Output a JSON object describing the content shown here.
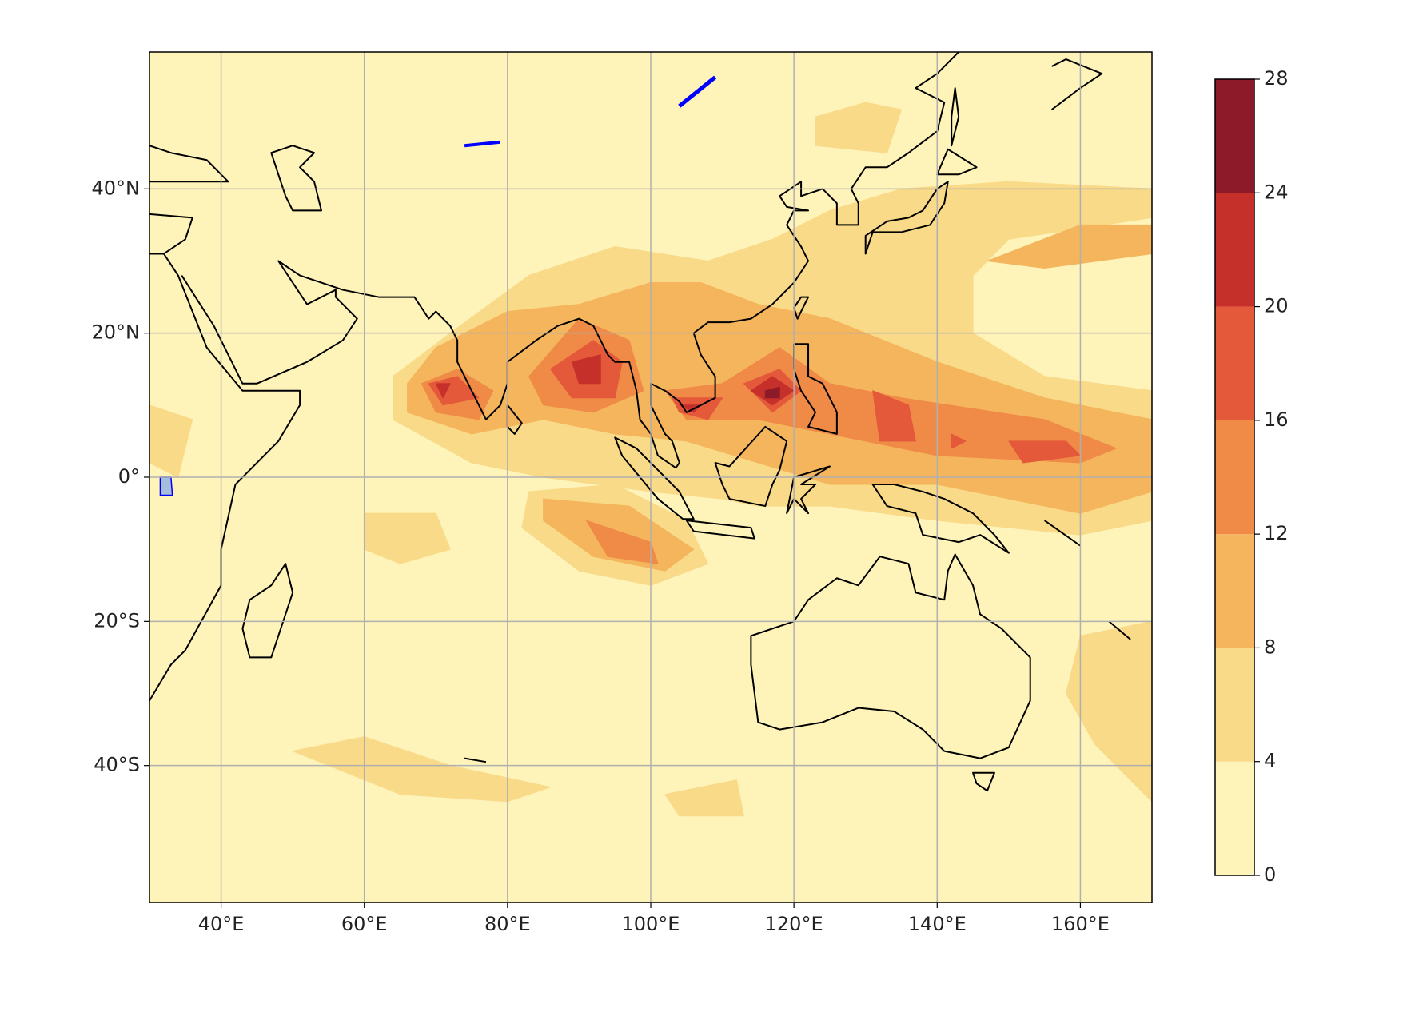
{
  "chart_data": {
    "type": "contourf",
    "xlim": [
      30,
      170
    ],
    "ylim": [
      -59,
      59
    ],
    "xticks": [
      {
        "value": 40,
        "label": "40°E"
      },
      {
        "value": 60,
        "label": "60°E"
      },
      {
        "value": 80,
        "label": "80°E"
      },
      {
        "value": 100,
        "label": "100°E"
      },
      {
        "value": 120,
        "label": "120°E"
      },
      {
        "value": 140,
        "label": "140°E"
      },
      {
        "value": 160,
        "label": "160°E"
      }
    ],
    "yticks": [
      {
        "value": 40,
        "label": "40°N"
      },
      {
        "value": 20,
        "label": "20°N"
      },
      {
        "value": 0,
        "label": "0°"
      },
      {
        "value": -20,
        "label": "20°S"
      },
      {
        "value": -40,
        "label": "40°S"
      }
    ],
    "grid": true,
    "levels": [
      0,
      4,
      8,
      12,
      16,
      20,
      24,
      28
    ],
    "colors": [
      "#fef3b9",
      "#f9da88",
      "#f4b55c",
      "#ef8b47",
      "#e4593a",
      "#c6302a",
      "#8c1a28"
    ],
    "contours": [
      {
        "level": 4,
        "lon": [
          64,
          72,
          83,
          95,
          108,
          117,
          125,
          135,
          150,
          170,
          170,
          150,
          145,
          145,
          155,
          170,
          170,
          160,
          140,
          125,
          115,
          110,
          100,
          85,
          75,
          64
        ],
        "lat": [
          14,
          20,
          28,
          32,
          30,
          33,
          37,
          40,
          41,
          40,
          36,
          33,
          28,
          20,
          14,
          12,
          -6,
          -8,
          -6,
          -4,
          -4,
          -3,
          -2,
          0,
          2,
          8
        ]
      },
      {
        "level": 4,
        "lon": [
          83,
          95,
          105,
          108,
          100,
          90,
          82
        ],
        "lat": [
          -2,
          -1,
          -6,
          -12,
          -15,
          -13,
          -7
        ]
      },
      {
        "level": 4,
        "lon": [
          60,
          70,
          72,
          65,
          60
        ],
        "lat": [
          -5,
          -5,
          -10,
          -12,
          -10
        ]
      },
      {
        "level": 4,
        "lon": [
          50,
          60,
          72,
          86,
          80,
          65
        ],
        "lat": [
          -38,
          -36,
          -40,
          -43,
          -45,
          -44
        ]
      },
      {
        "level": 4,
        "lon": [
          102,
          112,
          113,
          104
        ],
        "lat": [
          -44,
          -42,
          -47,
          -47
        ]
      },
      {
        "level": 4,
        "lon": [
          160,
          170,
          170,
          162,
          158
        ],
        "lat": [
          -22,
          -20,
          -45,
          -37,
          -30
        ]
      },
      {
        "level": 4,
        "lon": [
          123,
          130,
          135,
          133,
          123
        ],
        "lat": [
          50,
          52,
          51,
          45,
          46
        ]
      },
      {
        "level": 4,
        "lon": [
          30,
          36,
          34,
          30
        ],
        "lat": [
          10,
          8,
          0,
          2
        ]
      },
      {
        "level": 8,
        "lon": [
          147,
          160,
          170,
          170,
          155
        ],
        "lat": [
          30,
          35,
          35,
          31,
          29
        ]
      },
      {
        "level": 8,
        "lon": [
          66,
          70,
          80,
          90,
          100,
          107,
          115,
          125,
          140,
          155,
          170,
          170,
          160,
          140,
          125,
          115,
          105,
          95,
          85,
          75,
          66
        ],
        "lat": [
          13,
          18,
          23,
          24,
          27,
          27,
          24,
          22,
          16,
          11,
          8,
          -2,
          -5,
          -1,
          -1,
          2,
          5,
          6,
          8,
          6,
          9
        ]
      },
      {
        "level": 8,
        "lon": [
          85,
          97,
          106,
          102,
          92,
          85
        ],
        "lat": [
          -3,
          -4,
          -10,
          -13,
          -11,
          -6
        ]
      },
      {
        "level": 12,
        "lon": [
          68,
          73,
          78,
          76,
          70
        ],
        "lat": [
          13,
          15,
          12,
          8,
          9
        ]
      },
      {
        "level": 12,
        "lon": [
          83,
          90,
          97,
          99,
          92,
          85
        ],
        "lat": [
          14,
          22,
          19,
          12,
          9,
          10
        ]
      },
      {
        "level": 12,
        "lon": [
          102,
          110,
          118,
          125,
          135,
          155,
          165,
          160,
          140,
          125,
          115,
          105
        ],
        "lat": [
          12,
          13,
          18,
          13,
          11,
          8,
          4,
          2,
          3,
          6,
          8,
          8
        ]
      },
      {
        "level": 12,
        "lon": [
          91,
          100,
          101,
          94
        ],
        "lat": [
          -6,
          -9,
          -12,
          -11
        ]
      },
      {
        "level": 16,
        "lon": [
          69,
          73,
          76,
          71
        ],
        "lat": [
          13,
          14,
          11,
          10
        ]
      },
      {
        "level": 16,
        "lon": [
          86,
          92,
          96,
          95,
          89
        ],
        "lat": [
          15,
          19,
          16,
          11,
          11
        ]
      },
      {
        "level": 16,
        "lon": [
          103,
          110,
          108,
          104
        ],
        "lat": [
          11,
          11,
          8,
          9
        ]
      },
      {
        "level": 16,
        "lon": [
          113,
          118,
          121,
          117
        ],
        "lat": [
          13,
          15,
          12,
          9
        ]
      },
      {
        "level": 16,
        "lon": [
          131,
          136,
          137,
          132
        ],
        "lat": [
          12,
          10,
          5,
          5
        ]
      },
      {
        "level": 16,
        "lon": [
          150,
          158,
          160,
          152
        ],
        "lat": [
          5,
          5,
          3,
          2
        ]
      },
      {
        "level": 16,
        "lon": [
          142,
          144,
          142
        ],
        "lat": [
          6,
          5,
          4
        ]
      },
      {
        "level": 20,
        "lon": [
          114,
          117,
          120,
          117
        ],
        "lat": [
          12,
          14,
          12,
          10
        ]
      },
      {
        "level": 20,
        "lon": [
          89,
          93,
          93,
          90
        ],
        "lat": [
          16,
          17,
          13,
          13
        ]
      },
      {
        "level": 20,
        "lon": [
          70,
          72,
          71
        ],
        "lat": [
          13,
          13,
          11
        ]
      },
      {
        "level": 20,
        "lon": [
          104,
          107,
          106
        ],
        "lat": [
          10,
          10,
          9
        ]
      },
      {
        "level": 24,
        "lon": [
          116,
          118,
          118,
          116
        ],
        "lat": [
          12,
          12.5,
          11,
          11
        ]
      }
    ]
  }
}
